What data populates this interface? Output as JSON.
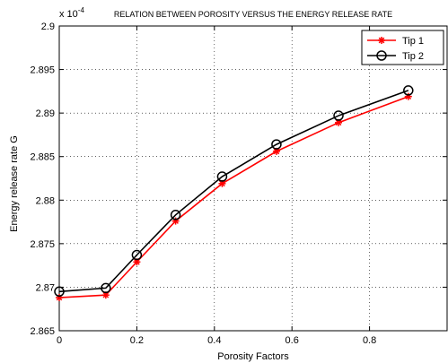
{
  "chart_data": {
    "type": "line",
    "title": "RELATION BETWEEN POROSITY VERSUS THE ENERGY RELEASE RATE",
    "xlabel": "Porosity Factors",
    "ylabel": "Energy release rate G",
    "multiplier": "x 10",
    "multiplier_exp": "-4",
    "xlim": [
      0,
      1
    ],
    "ylim": [
      2.865,
      2.9
    ],
    "xticks": [
      "0",
      "0.2",
      "0.4",
      "0.6",
      "0.8"
    ],
    "yticks": [
      "2.865",
      "2.87",
      "2.875",
      "2.88",
      "2.885",
      "2.89",
      "2.895",
      "2.9"
    ],
    "grid": true,
    "legend_position": "top-right",
    "series": [
      {
        "name": "Tip 1",
        "color": "#ff0000",
        "marker": "asterisk",
        "x": [
          0,
          0.12,
          0.2,
          0.3,
          0.42,
          0.56,
          0.72,
          0.9
        ],
        "y": [
          2.8688,
          2.8691,
          2.8729,
          2.8776,
          2.8819,
          2.8856,
          2.8889,
          2.8919
        ]
      },
      {
        "name": "Tip 2",
        "color": "#000000",
        "marker": "circle",
        "x": [
          0,
          0.12,
          0.2,
          0.3,
          0.42,
          0.56,
          0.72,
          0.9
        ],
        "y": [
          2.8695,
          2.8699,
          2.8737,
          2.8783,
          2.8827,
          2.8864,
          2.8897,
          2.8926
        ]
      }
    ]
  }
}
